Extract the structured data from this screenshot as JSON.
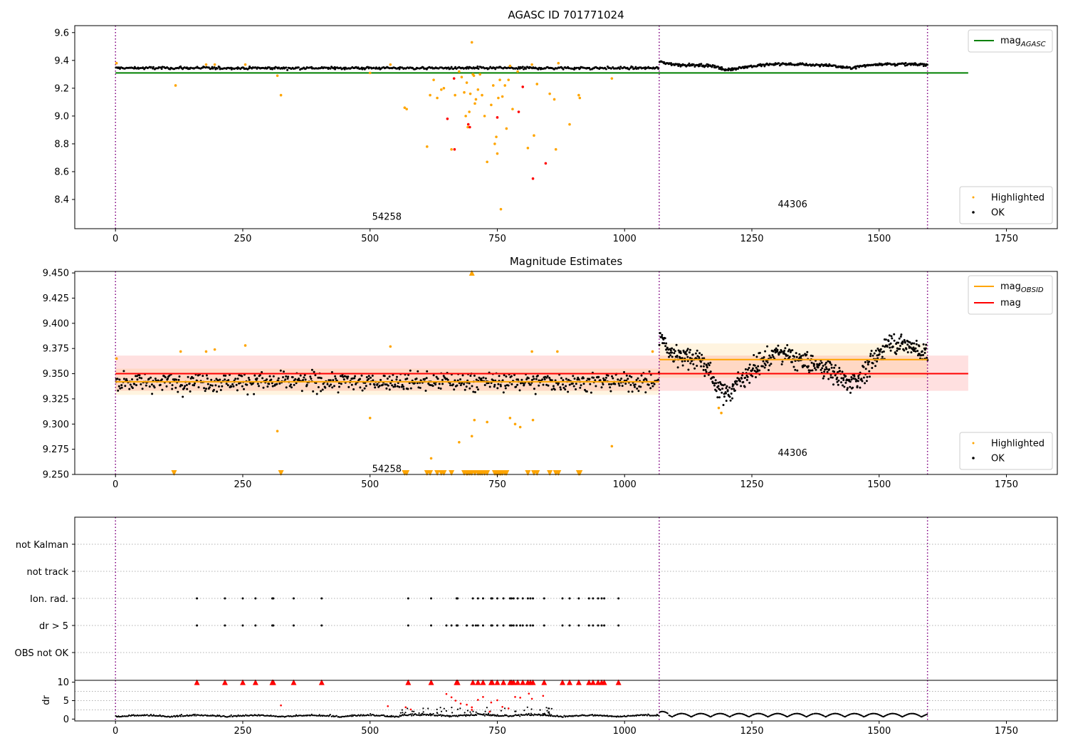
{
  "chart_data": [
    {
      "type": "scatter",
      "title": "AGASC ID 701771024",
      "xlim": [
        -80,
        1850
      ],
      "ylim": [
        8.19,
        9.65
      ],
      "xticks": [
        0,
        250,
        500,
        750,
        1000,
        1250,
        1500,
        1750
      ],
      "yticks": [
        8.4,
        8.6,
        8.8,
        9.0,
        9.2,
        9.4,
        9.6
      ],
      "ytick_labels": [
        "8.4",
        "8.6",
        "8.8",
        "9.0",
        "9.2",
        "9.4",
        "9.6"
      ],
      "obsid_boundaries": [
        0,
        1068,
        1595
      ],
      "obsid_labels": [
        {
          "text": "54258",
          "x": 533,
          "y": 8.28
        },
        {
          "text": "44306",
          "x": 1330,
          "y": 8.37
        }
      ],
      "hlines": [
        {
          "name": "mag_AGASC",
          "y": 9.31,
          "x0": 0,
          "x1": 1675,
          "color": "#008000"
        }
      ],
      "legend_top": {
        "position": "top-right",
        "entries": [
          {
            "main": "mag",
            "sub": "AGASC",
            "color": "#008000"
          }
        ]
      },
      "legend_bottom": {
        "position": "bottom-right",
        "entries": [
          {
            "label": "Highlighted",
            "color": "#ffa500"
          },
          {
            "label": "OK",
            "color": "#000000"
          }
        ]
      },
      "ok_series": [
        {
          "x0": 0,
          "x1": 1068,
          "base": 9.345,
          "noise": 0.011,
          "n": 520
        },
        {
          "x0": 1068,
          "x1": 1595,
          "curve": [
            [
              1068,
              9.39
            ],
            [
              1100,
              9.37
            ],
            [
              1180,
              9.36
            ],
            [
              1195,
              9.33
            ],
            [
              1240,
              9.355
            ],
            [
              1300,
              9.375
            ],
            [
              1400,
              9.365
            ],
            [
              1440,
              9.345
            ],
            [
              1500,
              9.375
            ],
            [
              1595,
              9.37
            ]
          ],
          "noise": 0.011,
          "n": 330
        }
      ],
      "highlighted": [
        [
          2,
          9.38
        ],
        [
          118,
          9.22
        ],
        [
          178,
          9.37
        ],
        [
          195,
          9.37
        ],
        [
          255,
          9.37
        ],
        [
          318,
          9.29
        ],
        [
          325,
          9.15
        ],
        [
          500,
          9.31
        ],
        [
          540,
          9.37
        ],
        [
          568,
          9.06
        ],
        [
          572,
          9.05
        ],
        [
          612,
          8.78
        ],
        [
          618,
          9.15
        ],
        [
          625,
          9.26
        ],
        [
          632,
          9.13
        ],
        [
          640,
          9.19
        ],
        [
          645,
          9.2
        ],
        [
          660,
          8.76
        ],
        [
          667,
          9.15
        ],
        [
          675,
          9.32
        ],
        [
          680,
          9.28
        ],
        [
          685,
          9.17
        ],
        [
          688,
          9.0
        ],
        [
          690,
          9.24
        ],
        [
          692,
          8.92
        ],
        [
          695,
          9.03
        ],
        [
          697,
          9.16
        ],
        [
          700,
          9.53
        ],
        [
          702,
          9.3
        ],
        [
          704,
          9.29
        ],
        [
          706,
          9.09
        ],
        [
          708,
          9.12
        ],
        [
          712,
          9.19
        ],
        [
          716,
          9.3
        ],
        [
          720,
          9.15
        ],
        [
          725,
          9.0
        ],
        [
          730,
          8.67
        ],
        [
          738,
          9.08
        ],
        [
          742,
          9.22
        ],
        [
          745,
          8.8
        ],
        [
          748,
          8.85
        ],
        [
          750,
          8.73
        ],
        [
          752,
          9.13
        ],
        [
          755,
          9.26
        ],
        [
          757,
          8.33
        ],
        [
          760,
          9.14
        ],
        [
          765,
          9.22
        ],
        [
          768,
          8.91
        ],
        [
          772,
          9.26
        ],
        [
          775,
          9.36
        ],
        [
          780,
          9.05
        ],
        [
          790,
          9.32
        ],
        [
          810,
          8.77
        ],
        [
          818,
          9.37
        ],
        [
          822,
          8.86
        ],
        [
          828,
          9.23
        ],
        [
          853,
          9.16
        ],
        [
          862,
          9.12
        ],
        [
          865,
          8.76
        ],
        [
          870,
          9.38
        ],
        [
          892,
          8.94
        ],
        [
          910,
          9.15
        ],
        [
          912,
          9.13
        ],
        [
          975,
          9.27
        ]
      ],
      "highlighted_red": [
        [
          652,
          8.98
        ],
        [
          665,
          9.27
        ],
        [
          666,
          8.76
        ],
        [
          693,
          8.94
        ],
        [
          696,
          8.92
        ],
        [
          750,
          8.99
        ],
        [
          792,
          9.03
        ],
        [
          800,
          9.21
        ],
        [
          820,
          8.55
        ],
        [
          845,
          8.66
        ]
      ]
    },
    {
      "type": "scatter",
      "title": "Magnitude Estimates",
      "xlim": [
        -80,
        1850
      ],
      "ylim": [
        9.25,
        9.4515
      ],
      "xticks": [
        0,
        250,
        500,
        750,
        1000,
        1250,
        1500,
        1750
      ],
      "yticks": [
        9.25,
        9.275,
        9.3,
        9.325,
        9.35,
        9.375,
        9.4,
        9.425,
        9.45
      ],
      "ytick_labels": [
        "9.250",
        "9.275",
        "9.300",
        "9.325",
        "9.350",
        "9.375",
        "9.400",
        "9.425",
        "9.450"
      ],
      "obsid_boundaries": [
        0,
        1068,
        1595
      ],
      "obsid_labels": [
        {
          "text": "54258",
          "x": 533,
          "y": 9.256
        },
        {
          "text": "44306",
          "x": 1330,
          "y": 9.272
        }
      ],
      "bands": [
        {
          "x0": 0,
          "x1": 1675,
          "y0": 9.333,
          "y1": 9.368,
          "color": "#ff0000",
          "opacity": 0.12
        },
        {
          "x0": 0,
          "x1": 1068,
          "y0": 9.329,
          "y1": 9.355,
          "color": "#ffa500",
          "opacity": 0.12
        },
        {
          "x0": 1068,
          "x1": 1595,
          "y0": 9.346,
          "y1": 9.38,
          "color": "#ffa500",
          "opacity": 0.12
        }
      ],
      "hlines": [
        {
          "name": "mag_OBSID",
          "y": 9.342,
          "x0": 0,
          "x1": 1068,
          "color": "#ffa500"
        },
        {
          "name": "mag_OBSID",
          "y": 9.364,
          "x0": 1068,
          "x1": 1595,
          "color": "#ffa500"
        },
        {
          "name": "mag",
          "y": 9.35,
          "x0": 0,
          "x1": 1675,
          "color": "#ff0000"
        }
      ],
      "legend_top": {
        "position": "top-right",
        "entries": [
          {
            "main": "mag",
            "sub": "OBSID",
            "color": "#ffa500"
          },
          {
            "main": "mag",
            "sub": "",
            "color": "#ff0000"
          }
        ]
      },
      "legend_bottom": {
        "position": "bottom-right",
        "entries": [
          {
            "label": "Highlighted",
            "color": "#ffa500"
          },
          {
            "label": "OK",
            "color": "#000000"
          }
        ]
      },
      "ok_series": [
        {
          "x0": 0,
          "x1": 1068,
          "base": 9.342,
          "noise": 0.011,
          "n": 700
        },
        {
          "x0": 1068,
          "x1": 1595,
          "curve": [
            [
              1068,
              9.39
            ],
            [
              1090,
              9.37
            ],
            [
              1150,
              9.365
            ],
            [
              1185,
              9.335
            ],
            [
              1200,
              9.33
            ],
            [
              1240,
              9.35
            ],
            [
              1300,
              9.372
            ],
            [
              1350,
              9.362
            ],
            [
              1400,
              9.355
            ],
            [
              1440,
              9.34
            ],
            [
              1470,
              9.35
            ],
            [
              1520,
              9.382
            ],
            [
              1560,
              9.378
            ],
            [
              1595,
              9.37
            ]
          ],
          "noise": 0.012,
          "n": 560
        }
      ],
      "highlighted": [
        [
          2,
          9.365
        ],
        [
          128,
          9.372
        ],
        [
          178,
          9.372
        ],
        [
          195,
          9.374
        ],
        [
          255,
          9.378
        ],
        [
          318,
          9.293
        ],
        [
          500,
          9.306
        ],
        [
          540,
          9.377
        ],
        [
          620,
          9.266
        ],
        [
          675,
          9.282
        ],
        [
          700,
          9.288
        ],
        [
          705,
          9.304
        ],
        [
          730,
          9.302
        ],
        [
          775,
          9.306
        ],
        [
          785,
          9.3
        ],
        [
          795,
          9.297
        ],
        [
          820,
          9.304
        ],
        [
          818,
          9.372
        ],
        [
          868,
          9.372
        ],
        [
          975,
          9.278
        ],
        [
          1055,
          9.372
        ],
        [
          1185,
          9.316
        ],
        [
          1190,
          9.311
        ]
      ],
      "offscale_low": [
        115,
        325,
        568,
        572,
        612,
        618,
        632,
        640,
        645,
        660,
        685,
        690,
        692,
        696,
        700,
        706,
        712,
        716,
        720,
        725,
        730,
        745,
        748,
        752,
        755,
        757,
        760,
        765,
        768,
        810,
        822,
        828,
        853,
        865,
        870,
        910,
        912
      ],
      "offscale_high": [
        700
      ]
    },
    {
      "type": "scatter",
      "title": "",
      "xlim": [
        -80,
        1850
      ],
      "xticks": [
        0,
        250,
        500,
        750,
        1000,
        1250,
        1500,
        1750
      ],
      "categories": [
        "not Kalman",
        "not track",
        "Ion. rad.",
        "dr > 5",
        "OBS not OK"
      ],
      "obsid_boundaries": [
        0,
        1068,
        1595
      ],
      "flags": {
        "Ion. rad.": [
          160,
          215,
          250,
          275,
          308,
          310,
          350,
          405,
          575,
          620,
          670,
          672,
          702,
          712,
          722,
          738,
          740,
          750,
          762,
          775,
          778,
          782,
          790,
          800,
          810,
          815,
          820,
          842,
          878,
          892,
          910,
          930,
          938,
          948,
          955,
          960,
          988
        ],
        "dr > 5": [
          160,
          215,
          250,
          275,
          308,
          310,
          350,
          405,
          575,
          620,
          650,
          660,
          670,
          672,
          690,
          702,
          708,
          712,
          722,
          738,
          740,
          750,
          762,
          775,
          778,
          782,
          788,
          795,
          800,
          808,
          815,
          820,
          842,
          878,
          892,
          910,
          930,
          938,
          948,
          955,
          960,
          988
        ]
      }
    },
    {
      "type": "scatter",
      "title": "",
      "ylabel": "dr",
      "xlim": [
        -80,
        1850
      ],
      "ylim": [
        -0.5,
        10.5
      ],
      "xticks": [
        0,
        250,
        500,
        750,
        1000,
        1250,
        1500,
        1750
      ],
      "yticks": [
        0,
        5,
        10
      ],
      "ytick_labels": [
        "0",
        "5",
        "10"
      ],
      "obsid_boundaries": [
        0,
        1068,
        1595
      ],
      "capped_at_10": [
        160,
        215,
        250,
        275,
        308,
        310,
        350,
        405,
        575,
        620,
        670,
        672,
        702,
        712,
        722,
        738,
        740,
        750,
        762,
        775,
        778,
        782,
        790,
        800,
        810,
        815,
        820,
        842,
        878,
        892,
        910,
        930,
        938,
        948,
        955,
        960,
        988
      ],
      "red_points": [
        [
          325,
          3.7
        ],
        [
          535,
          3.5
        ],
        [
          570,
          3.2
        ],
        [
          580,
          2.6
        ],
        [
          650,
          6.8
        ],
        [
          660,
          5.9
        ],
        [
          668,
          5.0
        ],
        [
          678,
          4.2
        ],
        [
          690,
          3.9
        ],
        [
          700,
          3.2
        ],
        [
          712,
          5.2
        ],
        [
          722,
          6.0
        ],
        [
          738,
          4.5
        ],
        [
          750,
          5.1
        ],
        [
          760,
          3.3
        ],
        [
          772,
          2.9
        ],
        [
          785,
          6.0
        ],
        [
          795,
          5.8
        ],
        [
          812,
          6.9
        ],
        [
          818,
          5.5
        ],
        [
          840,
          6.3
        ],
        [
          700,
          2.5
        ],
        [
          735,
          2.0
        ]
      ]
    }
  ]
}
